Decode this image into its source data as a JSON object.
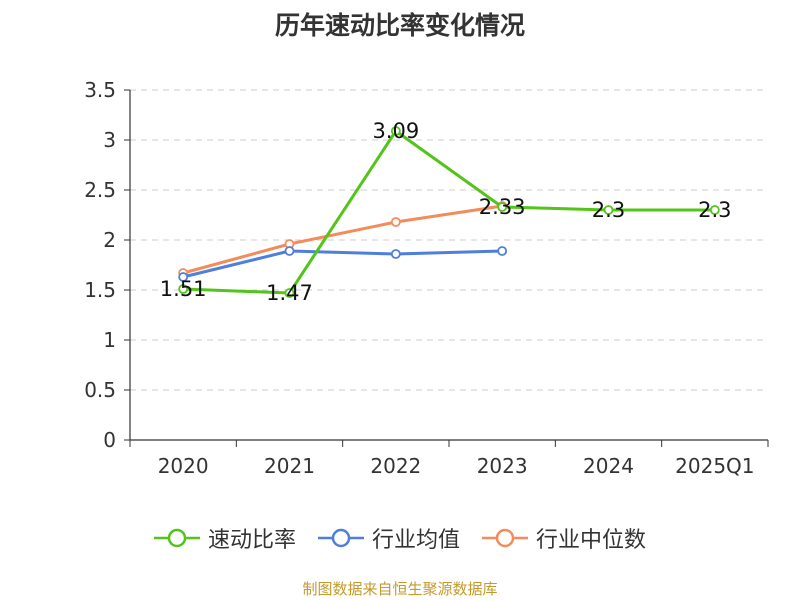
{
  "chart_data": {
    "type": "line",
    "title": "历年速动比率变化情况",
    "categories": [
      "2020",
      "2021",
      "2022",
      "2023",
      "2024",
      "2025Q1"
    ],
    "ylim": [
      0,
      3.5
    ],
    "yticks": [
      "0",
      "0.5",
      "1",
      "1.5",
      "2",
      "2.5",
      "3",
      "3.5"
    ],
    "grid": true,
    "legend_position": "bottom",
    "series": [
      {
        "name": "速动比率",
        "color": "#52c41a",
        "values": [
          1.51,
          1.47,
          3.09,
          2.33,
          2.3,
          2.3
        ],
        "labels": [
          "1.51",
          "1.47",
          "3.09",
          "2.33",
          "2.3",
          "2.3"
        ]
      },
      {
        "name": "行业均值",
        "color": "#4f7fdb",
        "values": [
          1.63,
          1.89,
          1.86,
          1.89,
          null,
          null
        ]
      },
      {
        "name": "行业中位数",
        "color": "#f28c5a",
        "values": [
          1.67,
          1.96,
          2.18,
          2.34,
          null,
          null
        ]
      }
    ]
  },
  "source": "制图数据来自恒生聚源数据库"
}
